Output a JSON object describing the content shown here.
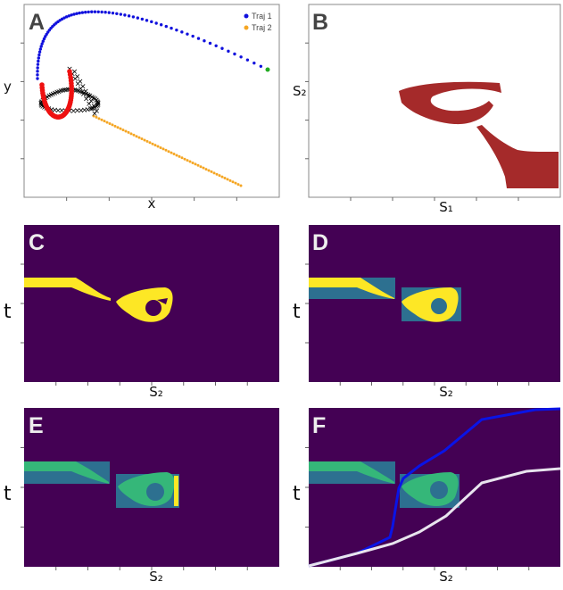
{
  "colors": {
    "traj1": "#1010dd",
    "traj2": "#f5a623",
    "cross": "#000000",
    "red": "#ee1111",
    "green": "#22aa22",
    "region_b": "#a52a2a",
    "bg_dark": "#440154",
    "yellow": "#fde725",
    "teal": "#2d7090",
    "teal_light": "#31688e",
    "green_mid": "#35b779",
    "path_blue": "#0a14e6",
    "path_white": "#e8e4ee"
  },
  "panels": {
    "a": {
      "label": "A",
      "xlabel": "x",
      "ylabel": "y"
    },
    "b": {
      "label": "B",
      "xlabel": "S₁",
      "ylabel": "S₂"
    },
    "c": {
      "label": "C",
      "xlabel": "S₂",
      "ylabel": "t"
    },
    "d": {
      "label": "D",
      "xlabel": "S₂",
      "ylabel": "t"
    },
    "e": {
      "label": "E",
      "xlabel": "S₂",
      "ylabel": "t"
    },
    "f": {
      "label": "F",
      "xlabel": "S₂",
      "ylabel": "t"
    }
  },
  "legend": [
    {
      "name": "Traj 1",
      "color": "#1010dd"
    },
    {
      "name": "Traj 2",
      "color": "#f5a623"
    }
  ]
}
